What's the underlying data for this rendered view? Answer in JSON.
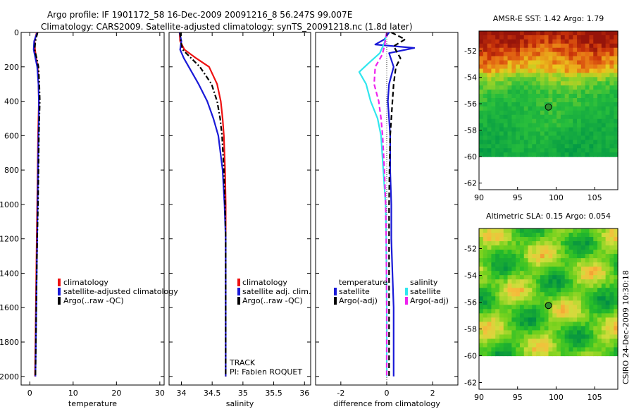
{
  "figure": {
    "title_line1": "Argo profile: IF 1901172_58 16-Dec-2009 20091216_8 56.247S 99.007E",
    "title_line2": "Climatology: CARS2009. Satellite-adjusted climatology: synTS_20091218.nc (1.8d later)",
    "credit": "CSIRO 24-Dec-2009 10:30:18",
    "track_label": "TRACK",
    "pi_label": "PI: Fabien ROQUET"
  },
  "colors": {
    "climatology": "#ee1111",
    "satellite": "#1a1ad8",
    "argo": "#000000",
    "satellite_salinity": "#30e6ee",
    "argo_salinity": "#ee22ee",
    "float_marker": "#2f8f2f"
  },
  "chart_data": [
    {
      "type": "line",
      "name": "temperature",
      "xlabel": "temperature",
      "xlim": [
        -2,
        31
      ],
      "ylim": [
        2050,
        0
      ],
      "xticks": [
        0,
        10,
        20,
        30
      ],
      "yticks": [
        0,
        200,
        400,
        600,
        800,
        1000,
        1200,
        1400,
        1600,
        1800,
        2000
      ],
      "legend": [
        "climatology",
        "satellite-adjusted climatology",
        "Argo(..raw -QC)"
      ],
      "series": [
        {
          "name": "climatology",
          "style": "solid",
          "color_key": "climatology",
          "x": [
            1.6,
            1.1,
            1.2,
            1.5,
            1.8,
            2.0,
            2.1,
            2.0,
            1.9,
            1.8,
            1.7,
            1.6,
            1.5,
            1.4,
            1.3,
            1.2
          ],
          "y": [
            0,
            50,
            100,
            150,
            200,
            300,
            400,
            500,
            600,
            800,
            1000,
            1200,
            1400,
            1600,
            1800,
            2000
          ]
        },
        {
          "name": "satellite-adjusted climatology",
          "style": "solid",
          "color_key": "satellite",
          "x": [
            1.7,
            1.0,
            0.9,
            1.3,
            1.7,
            2.0,
            2.1,
            2.1,
            2.0,
            1.9,
            1.8,
            1.7,
            1.6,
            1.5,
            1.4,
            1.3
          ],
          "y": [
            0,
            50,
            100,
            150,
            200,
            300,
            400,
            500,
            600,
            800,
            1000,
            1200,
            1400,
            1600,
            1800,
            2000
          ]
        },
        {
          "name": "Argo(..raw -QC)",
          "style": "dashdot",
          "color_key": "argo",
          "x": [
            1.8,
            1.3,
            1.1,
            1.6,
            2.0,
            2.2,
            2.3,
            2.2,
            2.1,
            2.0,
            1.9,
            1.7,
            1.6,
            1.5,
            1.4,
            1.3
          ],
          "y": [
            0,
            50,
            100,
            150,
            200,
            300,
            400,
            500,
            600,
            800,
            1000,
            1200,
            1400,
            1600,
            1800,
            2000
          ]
        }
      ]
    },
    {
      "type": "line",
      "name": "salinity",
      "xlabel": "salinity",
      "xlim": [
        33.8,
        36.1
      ],
      "ylim": [
        2050,
        0
      ],
      "xticks": [
        34,
        34.5,
        35,
        35.5,
        36
      ],
      "legend": [
        "climatology",
        "satellite adj. clim.",
        "Argo(..raw -QC)"
      ],
      "series": [
        {
          "name": "climatology",
          "style": "solid",
          "color_key": "climatology",
          "x": [
            33.97,
            33.98,
            34.05,
            34.24,
            34.45,
            34.58,
            34.64,
            34.67,
            34.69,
            34.71,
            34.72,
            34.72,
            34.72,
            34.72,
            34.72
          ],
          "y": [
            0,
            50,
            100,
            150,
            200,
            300,
            400,
            500,
            600,
            800,
            1000,
            1200,
            1400,
            1600,
            2000
          ]
        },
        {
          "name": "satellite adj. clim.",
          "style": "solid",
          "color_key": "satellite",
          "x": [
            33.97,
            34.0,
            33.98,
            34.04,
            34.12,
            34.28,
            34.42,
            34.52,
            34.6,
            34.67,
            34.7,
            34.72,
            34.72,
            34.72,
            34.72
          ],
          "y": [
            0,
            50,
            100,
            150,
            200,
            300,
            400,
            500,
            600,
            800,
            1000,
            1200,
            1400,
            1600,
            2000
          ]
        },
        {
          "name": "Argo(..raw -QC)",
          "style": "dashdot",
          "color_key": "argo",
          "x": [
            33.98,
            33.99,
            34.02,
            34.16,
            34.3,
            34.49,
            34.58,
            34.63,
            34.66,
            34.69,
            34.71,
            34.72,
            34.72,
            34.72,
            34.72
          ],
          "y": [
            0,
            50,
            100,
            150,
            200,
            300,
            400,
            500,
            600,
            800,
            1000,
            1200,
            1400,
            1600,
            2000
          ]
        }
      ]
    },
    {
      "type": "line",
      "name": "difference",
      "xlabel": "difference from climatology",
      "xlim": [
        -3.1,
        3.1
      ],
      "ylim": [
        2050,
        0
      ],
      "xticks": [
        -2,
        0,
        2
      ],
      "legend_temperature_title": "temperature",
      "legend_salinity_title": "salinity",
      "legend_temperature": [
        "satellite",
        "Argo(-adj)"
      ],
      "legend_salinity": [
        "satellite",
        "Argo(-adj)"
      ],
      "series": [
        {
          "name": "temperature satellite",
          "style": "solid",
          "color_key": "satellite",
          "x": [
            0.1,
            -0.1,
            -0.5,
            1.2,
            0.1,
            0.3,
            0.1,
            0.05,
            0.1,
            0.15,
            0.15,
            0.2,
            0.2,
            0.25,
            0.3,
            0.3,
            0.3
          ],
          "y": [
            0,
            40,
            70,
            90,
            120,
            200,
            300,
            400,
            500,
            600,
            800,
            1000,
            1200,
            1400,
            1600,
            1800,
            2000
          ]
        },
        {
          "name": "temperature Argo(-adj)",
          "style": "dashed",
          "color_key": "argo",
          "x": [
            0.2,
            0.8,
            0.3,
            0.6,
            0.4,
            0.35,
            0.3,
            0.25,
            0.2,
            0.15,
            0.12,
            0.1,
            0.1,
            0.1,
            0.1,
            0.1
          ],
          "y": [
            0,
            40,
            80,
            150,
            200,
            250,
            300,
            400,
            500,
            600,
            800,
            1000,
            1200,
            1400,
            1600,
            2000
          ]
        },
        {
          "name": "salinity satellite",
          "style": "solid",
          "color_key": "satellite_salinity",
          "x": [
            0.0,
            -0.1,
            -0.3,
            -0.8,
            -1.2,
            -0.9,
            -0.7,
            -0.4,
            -0.25,
            -0.15,
            -0.05,
            -0.02,
            0.0,
            0.0
          ],
          "y": [
            0,
            60,
            120,
            180,
            230,
            300,
            400,
            500,
            600,
            800,
            1000,
            1200,
            1600,
            2000
          ]
        },
        {
          "name": "salinity Argo(-adj)",
          "style": "dashed",
          "color_key": "argo_salinity",
          "x": [
            0.0,
            -0.1,
            -0.2,
            -0.5,
            -0.55,
            -0.35,
            -0.25,
            -0.18,
            -0.1,
            -0.05,
            -0.02,
            0.0,
            0.0
          ],
          "y": [
            0,
            80,
            130,
            200,
            300,
            400,
            500,
            600,
            800,
            1000,
            1200,
            1600,
            2000
          ]
        }
      ]
    },
    {
      "type": "heatmap",
      "name": "amsre-sst-map",
      "title": "AMSR-E SST: 1.42 Argo: 1.79",
      "xlim": [
        90,
        108
      ],
      "ylim": [
        -62.5,
        -50.5
      ],
      "data_extent_lat": [
        -60,
        -50.5
      ],
      "xticks": [
        90,
        95,
        100,
        105
      ],
      "yticks": [
        -52,
        -54,
        -56,
        -58,
        -60,
        -62
      ],
      "marker": {
        "lon": 99.007,
        "lat": -56.247
      }
    },
    {
      "type": "heatmap",
      "name": "altimetric-sla-map",
      "title": "Altimetric SLA: 0.15 Argo: 0.054",
      "xlim": [
        90,
        108
      ],
      "ylim": [
        -62.5,
        -50.5
      ],
      "data_extent_lat": [
        -60,
        -50.5
      ],
      "xticks": [
        90,
        95,
        100,
        105
      ],
      "yticks": [
        -52,
        -54,
        -56,
        -58,
        -60,
        -62
      ],
      "marker": {
        "lon": 99.007,
        "lat": -56.247
      }
    }
  ]
}
